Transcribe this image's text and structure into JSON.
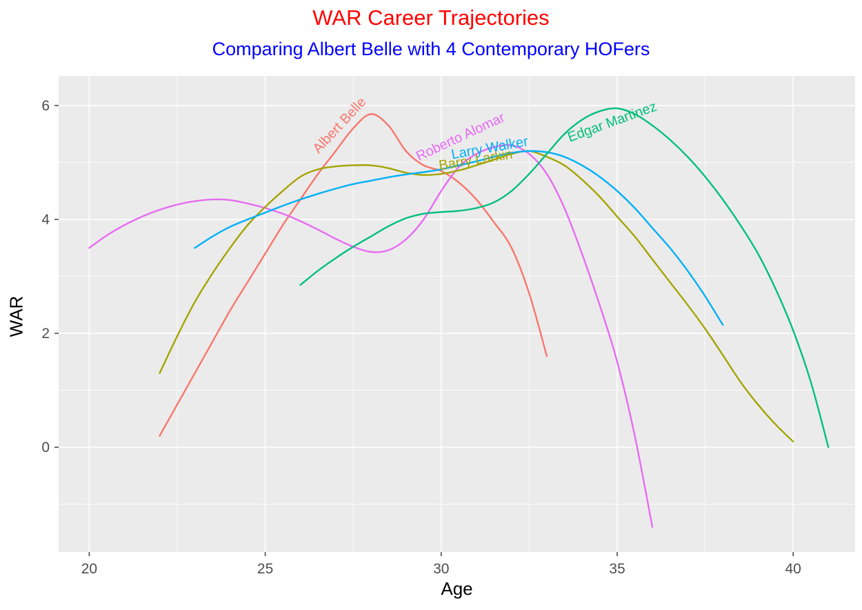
{
  "chart_data": {
    "type": "line",
    "title": "WAR Career Trajectories",
    "subtitle": "Comparing Albert Belle with 4 Contemporary HOFers",
    "title_color": "#FF0000",
    "subtitle_color": "#0000FF",
    "xlabel": "Age",
    "ylabel": "WAR",
    "xlim": [
      19.13,
      41.76
    ],
    "ylim": [
      -1.84,
      6.52
    ],
    "x_ticks": [
      20,
      25,
      30,
      35,
      40
    ],
    "y_ticks": [
      0,
      2,
      4,
      6
    ],
    "x_minor_ticks": [
      22.5,
      27.5,
      32.5,
      37.5
    ],
    "y_minor_ticks": [
      -1,
      1,
      3,
      5
    ],
    "panel_bg": "#EBEBEB",
    "grid_color": "#FFFFFF",
    "tick_label_color": "#4D4D4D",
    "tick_mark_color": "#333333",
    "legend_position": "labels-on-lines",
    "series": [
      {
        "name": "Albert Belle",
        "color": "#F8766D",
        "label": {
          "x": 27.2,
          "y": 5.6,
          "angle": -47
        },
        "points": [
          [
            22,
            0.2
          ],
          [
            22.5,
            0.75
          ],
          [
            23,
            1.3
          ],
          [
            23.5,
            1.85
          ],
          [
            24,
            2.4
          ],
          [
            24.5,
            2.9
          ],
          [
            25,
            3.4
          ],
          [
            25.5,
            3.9
          ],
          [
            26,
            4.35
          ],
          [
            26.5,
            4.8
          ],
          [
            27,
            5.2
          ],
          [
            27.5,
            5.6
          ],
          [
            28,
            5.85
          ],
          [
            28.5,
            5.65
          ],
          [
            29,
            5.2
          ],
          [
            29.5,
            4.95
          ],
          [
            30,
            4.85
          ],
          [
            30.5,
            4.65
          ],
          [
            31,
            4.35
          ],
          [
            31.5,
            3.95
          ],
          [
            32,
            3.5
          ],
          [
            32.5,
            2.7
          ],
          [
            33,
            1.6
          ]
        ]
      },
      {
        "name": "Roberto Alomar",
        "color": "#E76BF3",
        "label": {
          "x": 30.6,
          "y": 5.38,
          "angle": -25
        },
        "points": [
          [
            20,
            3.5
          ],
          [
            20.5,
            3.72
          ],
          [
            21,
            3.9
          ],
          [
            21.5,
            4.05
          ],
          [
            22,
            4.17
          ],
          [
            22.5,
            4.26
          ],
          [
            23,
            4.32
          ],
          [
            23.5,
            4.35
          ],
          [
            24,
            4.34
          ],
          [
            24.5,
            4.28
          ],
          [
            25,
            4.2
          ],
          [
            25.5,
            4.1
          ],
          [
            26,
            3.97
          ],
          [
            26.5,
            3.82
          ],
          [
            27,
            3.66
          ],
          [
            27.5,
            3.52
          ],
          [
            28,
            3.43
          ],
          [
            28.5,
            3.46
          ],
          [
            29,
            3.65
          ],
          [
            29.5,
            4.0
          ],
          [
            30,
            4.5
          ],
          [
            30.5,
            4.92
          ],
          [
            31,
            5.15
          ],
          [
            31.5,
            5.27
          ],
          [
            32,
            5.3
          ],
          [
            32.5,
            5.15
          ],
          [
            33,
            4.8
          ],
          [
            33.5,
            4.2
          ],
          [
            34,
            3.4
          ],
          [
            34.5,
            2.5
          ],
          [
            35,
            1.5
          ],
          [
            35.5,
            0.2
          ],
          [
            36,
            -1.4
          ]
        ]
      },
      {
        "name": "Barry Larkin",
        "color": "#A3A500",
        "label": {
          "x": 31.0,
          "y": 4.97,
          "angle": -9
        },
        "points": [
          [
            22,
            1.3
          ],
          [
            22.5,
            1.95
          ],
          [
            23,
            2.55
          ],
          [
            23.5,
            3.05
          ],
          [
            24,
            3.5
          ],
          [
            24.5,
            3.9
          ],
          [
            25,
            4.22
          ],
          [
            25.5,
            4.5
          ],
          [
            26,
            4.75
          ],
          [
            26.5,
            4.88
          ],
          [
            27,
            4.93
          ],
          [
            27.5,
            4.95
          ],
          [
            28,
            4.95
          ],
          [
            28.5,
            4.9
          ],
          [
            29,
            4.82
          ],
          [
            29.5,
            4.78
          ],
          [
            30,
            4.8
          ],
          [
            30.5,
            4.86
          ],
          [
            31,
            4.95
          ],
          [
            31.5,
            5.05
          ],
          [
            32,
            5.15
          ],
          [
            32.5,
            5.2
          ],
          [
            33,
            5.1
          ],
          [
            33.5,
            4.95
          ],
          [
            34,
            4.7
          ],
          [
            34.5,
            4.4
          ],
          [
            35,
            4.05
          ],
          [
            35.5,
            3.7
          ],
          [
            36,
            3.3
          ],
          [
            36.5,
            2.9
          ],
          [
            37,
            2.5
          ],
          [
            37.5,
            2.08
          ],
          [
            38,
            1.62
          ],
          [
            38.5,
            1.15
          ],
          [
            39,
            0.75
          ],
          [
            39.5,
            0.4
          ],
          [
            40,
            0.1
          ]
        ]
      },
      {
        "name": "Larry Walker",
        "color": "#00B0F6",
        "label": {
          "x": 31.4,
          "y": 5.18,
          "angle": -10
        },
        "points": [
          [
            23,
            3.5
          ],
          [
            23.5,
            3.7
          ],
          [
            24,
            3.87
          ],
          [
            24.5,
            4.0
          ],
          [
            25,
            4.12
          ],
          [
            25.5,
            4.24
          ],
          [
            26,
            4.35
          ],
          [
            26.5,
            4.45
          ],
          [
            27,
            4.54
          ],
          [
            27.5,
            4.62
          ],
          [
            28,
            4.68
          ],
          [
            28.5,
            4.74
          ],
          [
            29,
            4.79
          ],
          [
            29.5,
            4.83
          ],
          [
            30,
            4.88
          ],
          [
            30.5,
            4.95
          ],
          [
            31,
            5.02
          ],
          [
            31.5,
            5.1
          ],
          [
            32,
            5.17
          ],
          [
            32.5,
            5.2
          ],
          [
            33,
            5.18
          ],
          [
            33.5,
            5.1
          ],
          [
            34,
            4.95
          ],
          [
            34.5,
            4.75
          ],
          [
            35,
            4.5
          ],
          [
            35.5,
            4.2
          ],
          [
            36,
            3.85
          ],
          [
            36.5,
            3.5
          ],
          [
            37,
            3.1
          ],
          [
            37.5,
            2.65
          ],
          [
            38,
            2.15
          ]
        ]
      },
      {
        "name": "Edgar Martinez",
        "color": "#00BF7D",
        "label": {
          "x": 34.9,
          "y": 5.64,
          "angle": -20
        },
        "points": [
          [
            26,
            2.85
          ],
          [
            26.5,
            3.1
          ],
          [
            27,
            3.32
          ],
          [
            27.5,
            3.52
          ],
          [
            28,
            3.7
          ],
          [
            28.5,
            3.88
          ],
          [
            29,
            4.02
          ],
          [
            29.5,
            4.1
          ],
          [
            30,
            4.13
          ],
          [
            30.5,
            4.15
          ],
          [
            31,
            4.2
          ],
          [
            31.5,
            4.3
          ],
          [
            32,
            4.5
          ],
          [
            32.5,
            4.8
          ],
          [
            33,
            5.15
          ],
          [
            33.5,
            5.5
          ],
          [
            34,
            5.75
          ],
          [
            34.5,
            5.9
          ],
          [
            35,
            5.95
          ],
          [
            35.5,
            5.85
          ],
          [
            36,
            5.65
          ],
          [
            36.5,
            5.4
          ],
          [
            37,
            5.1
          ],
          [
            37.5,
            4.75
          ],
          [
            38,
            4.35
          ],
          [
            38.5,
            3.9
          ],
          [
            39,
            3.4
          ],
          [
            39.5,
            2.78
          ],
          [
            40,
            2.05
          ],
          [
            40.5,
            1.15
          ],
          [
            41,
            0.0
          ]
        ]
      }
    ]
  }
}
